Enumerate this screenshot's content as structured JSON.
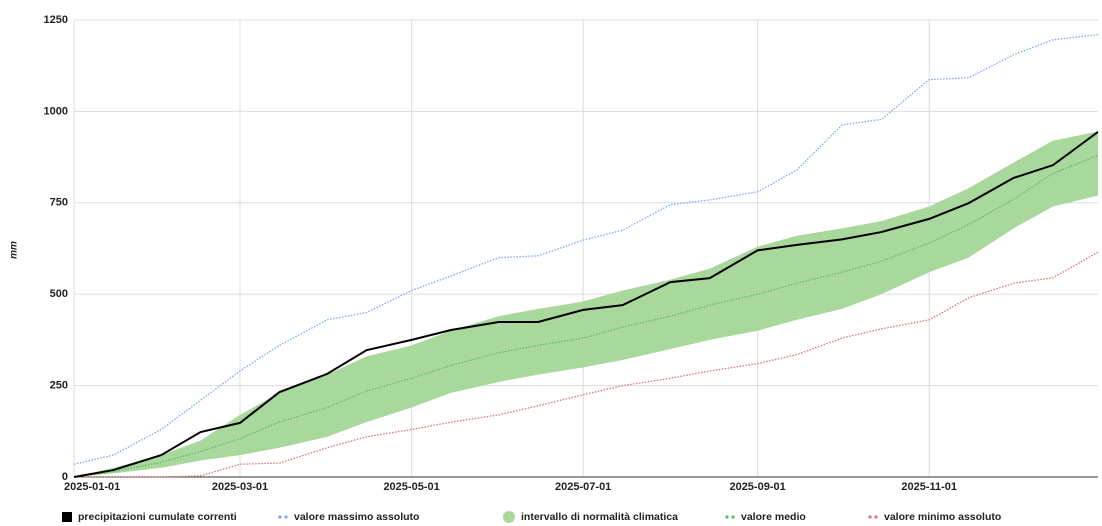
{
  "chart_data": {
    "type": "line",
    "y_label": "mm",
    "x": [
      "2025-01-01",
      "2025-01-15",
      "2025-02-01",
      "2025-02-15",
      "2025-03-01",
      "2025-03-15",
      "2025-04-01",
      "2025-04-15",
      "2025-05-01",
      "2025-05-15",
      "2025-06-01",
      "2025-06-15",
      "2025-07-01",
      "2025-07-15",
      "2025-08-01",
      "2025-08-15",
      "2025-09-01",
      "2025-09-15",
      "2025-10-01",
      "2025-10-15",
      "2025-11-01",
      "2025-11-15",
      "2025-12-01",
      "2025-12-15",
      "2025-12-31"
    ],
    "series": [
      {
        "name": "precipitazioni cumulate correnti",
        "color": "#000000",
        "style": "solid",
        "values": [
          0,
          19,
          60,
          123,
          148,
          232,
          282,
          347,
          375,
          402,
          424,
          424,
          457,
          470,
          533,
          544,
          620,
          635,
          650,
          670,
          706,
          749,
          818,
          853,
          944
        ]
      },
      {
        "name": "valore massimo assoluto",
        "color": "#7ea6f0",
        "style": "dotted",
        "values": [
          35,
          60,
          130,
          210,
          290,
          360,
          430,
          450,
          510,
          550,
          600,
          605,
          648,
          675,
          745,
          758,
          780,
          840,
          963,
          978,
          1087,
          1092,
          1155,
          1196,
          1210
        ]
      },
      {
        "name": "intervallo di normalità climatica",
        "color": "#a8d89c",
        "style": "band",
        "lower": [
          0,
          10,
          25,
          45,
          60,
          80,
          110,
          150,
          190,
          230,
          260,
          280,
          300,
          320,
          350,
          375,
          400,
          430,
          460,
          500,
          560,
          600,
          680,
          740,
          770
        ],
        "upper": [
          0,
          25,
          60,
          100,
          170,
          230,
          280,
          330,
          360,
          400,
          440,
          460,
          480,
          510,
          540,
          570,
          630,
          660,
          680,
          700,
          740,
          790,
          860,
          920,
          945
        ]
      },
      {
        "name": "valore medio",
        "color": "#5fb86a",
        "style": "dotted",
        "values": [
          0,
          15,
          40,
          70,
          105,
          150,
          190,
          235,
          270,
          305,
          340,
          360,
          380,
          410,
          440,
          470,
          500,
          530,
          560,
          590,
          640,
          690,
          760,
          830,
          880
        ]
      },
      {
        "name": "valore minimo assoluto",
        "color": "#d9737a",
        "style": "dotted",
        "values": [
          0,
          0,
          0,
          3,
          35,
          38,
          80,
          110,
          130,
          150,
          170,
          195,
          225,
          250,
          270,
          290,
          310,
          335,
          380,
          405,
          430,
          490,
          530,
          545,
          615
        ]
      }
    ],
    "xlim": [
      "2025-01-01",
      "2025-12-31"
    ],
    "xticks": [
      "2025-01-01",
      "2025-03-01",
      "2025-05-01",
      "2025-07-01",
      "2025-09-01",
      "2025-11-01"
    ],
    "ylim": [
      0,
      1250
    ],
    "yticks": [
      0,
      250,
      500,
      750,
      1000,
      1250
    ],
    "grid": true,
    "legend": "bottom"
  }
}
